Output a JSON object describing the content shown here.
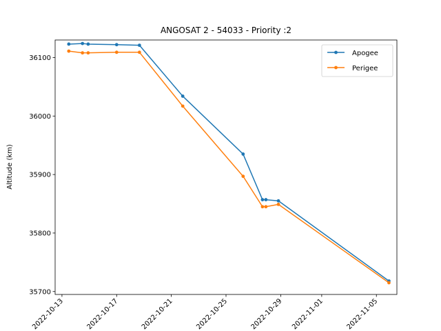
{
  "chart_data": {
    "type": "line",
    "title": "ANGOSAT 2 - 54033 - Priority :2",
    "xlabel": "",
    "ylabel": "Altitude (km)",
    "ylim": [
      35695,
      36130
    ],
    "xlim": [
      "2022-10-12T12:00",
      "2022-11-06T12:00"
    ],
    "grid": false,
    "legend_position": "top-right",
    "x_ticks": [
      "2022-10-13",
      "2022-10-17",
      "2022-10-21",
      "2022-10-25",
      "2022-10-29",
      "2022-11-01",
      "2022-11-05"
    ],
    "y_ticks": [
      35700,
      35800,
      35900,
      36000,
      36100
    ],
    "series": [
      {
        "name": "Apogee",
        "color": "#1f77b4",
        "points": [
          {
            "x": "2022-10-13T12:00",
            "y": 36123
          },
          {
            "x": "2022-10-14T12:00",
            "y": 36124
          },
          {
            "x": "2022-10-14T22:00",
            "y": 36123
          },
          {
            "x": "2022-10-17T00:00",
            "y": 36122
          },
          {
            "x": "2022-10-18T16:00",
            "y": 36121
          },
          {
            "x": "2022-10-21T20:00",
            "y": 36034
          },
          {
            "x": "2022-10-26T06:00",
            "y": 35935
          },
          {
            "x": "2022-10-27T16:00",
            "y": 35857
          },
          {
            "x": "2022-10-27T22:00",
            "y": 35857
          },
          {
            "x": "2022-10-28T20:00",
            "y": 35855
          },
          {
            "x": "2022-11-05T22:00",
            "y": 35718
          }
        ]
      },
      {
        "name": "Perigee",
        "color": "#ff7f0e",
        "points": [
          {
            "x": "2022-10-13T12:00",
            "y": 36111
          },
          {
            "x": "2022-10-14T12:00",
            "y": 36108
          },
          {
            "x": "2022-10-14T22:00",
            "y": 36108
          },
          {
            "x": "2022-10-17T00:00",
            "y": 36109
          },
          {
            "x": "2022-10-18T16:00",
            "y": 36109
          },
          {
            "x": "2022-10-21T20:00",
            "y": 36017
          },
          {
            "x": "2022-10-26T06:00",
            "y": 35897
          },
          {
            "x": "2022-10-27T16:00",
            "y": 35845
          },
          {
            "x": "2022-10-27T22:00",
            "y": 35845
          },
          {
            "x": "2022-10-28T20:00",
            "y": 35849
          },
          {
            "x": "2022-11-05T22:00",
            "y": 35715
          }
        ]
      }
    ]
  }
}
